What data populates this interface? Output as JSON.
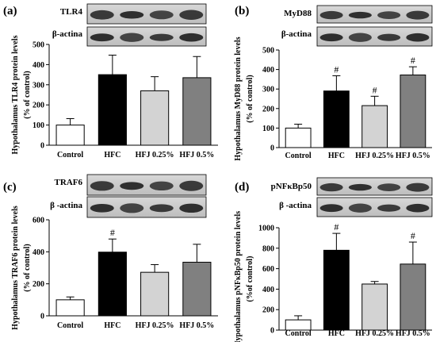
{
  "figure": {
    "background": "#ffffff"
  },
  "colors": {
    "bar_fill": [
      "#ffffff",
      "#000000",
      "#d3d3d3",
      "#808080"
    ],
    "stroke": "#000000"
  },
  "chart_data": [
    {
      "type": "bar",
      "panel_label": "(a)",
      "blot_labels": [
        "TLR4",
        "β-actina"
      ],
      "categories": [
        "Control",
        "HFC",
        "HFJ 0.25%",
        "HFJ 0.5%"
      ],
      "values": [
        100,
        350,
        270,
        335
      ],
      "errors": [
        32,
        97,
        70,
        105
      ],
      "significance": [
        "",
        "",
        "",
        ""
      ],
      "ylabel": [
        "Hypothalamus TLR4 protein levels",
        "(% of control)"
      ],
      "ylim": [
        0,
        500
      ],
      "yticks": [
        "0",
        "100",
        "200",
        "300",
        "400",
        "500"
      ]
    },
    {
      "type": "bar",
      "panel_label": "(b)",
      "blot_labels": [
        "MyD88",
        "β-actina"
      ],
      "categories": [
        "Control",
        "HFC",
        "HFJ 0.25%",
        "HFJ 0.5%"
      ],
      "values": [
        100,
        290,
        215,
        372
      ],
      "errors": [
        20,
        78,
        48,
        42
      ],
      "significance": [
        "",
        "#",
        "#",
        "#"
      ],
      "ylabel": [
        "Hypothalamus MyD88 protein levels",
        "(% of control)"
      ],
      "ylim": [
        0,
        500
      ],
      "yticks": [
        "0",
        "100",
        "200",
        "300",
        "400",
        "500"
      ]
    },
    {
      "type": "bar",
      "panel_label": "(c)",
      "blot_labels": [
        "TRAF6",
        "β -actina"
      ],
      "categories": [
        "Control",
        "HFC",
        "HFJ 0.25%",
        "HFJ 0.5%"
      ],
      "values": [
        100,
        398,
        272,
        335
      ],
      "errors": [
        18,
        82,
        48,
        112
      ],
      "significance": [
        "",
        "#",
        "",
        ""
      ],
      "ylabel": [
        "Hypothalamus TRAF6 protein levels",
        "(% of control)"
      ],
      "ylim": [
        0,
        600
      ],
      "yticks": [
        "0",
        "200",
        "400",
        "600"
      ]
    },
    {
      "type": "bar",
      "panel_label": "(d)",
      "blot_labels": [
        "pNFκBp50",
        "β -actina"
      ],
      "categories": [
        "Control",
        "HFC",
        "HFJ 0.25%",
        "HFJ 0.5%"
      ],
      "values": [
        100,
        780,
        450,
        645
      ],
      "errors": [
        40,
        165,
        25,
        215
      ],
      "significance": [
        "",
        "#",
        "",
        "#"
      ],
      "ylabel": [
        "Hypothalamus pNFκBp50 protein levels",
        "(%of control)"
      ],
      "ylim": [
        0,
        1000
      ],
      "yticks": [
        "0",
        "200",
        "400",
        "600",
        "800",
        "1000"
      ]
    }
  ]
}
